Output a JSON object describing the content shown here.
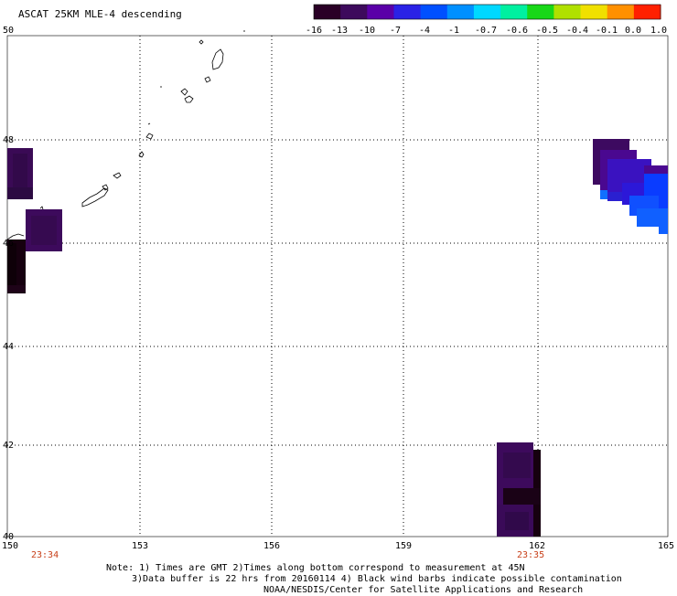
{
  "title": "ASCAT 25KM MLE-4 descending",
  "colorbar": {
    "labels": [
      "-16",
      "-13",
      "-10",
      "-7",
      "-4",
      "-1",
      "-0.7",
      "-0.6",
      "-0.5",
      "-0.4",
      "-0.1",
      "0.0",
      "1.0"
    ],
    "colors": [
      "#2a0026",
      "#3d0a5c",
      "#5a00a8",
      "#2a22e6",
      "#0050ff",
      "#0090ff",
      "#00d8ff",
      "#00f0a0",
      "#18d818",
      "#b0e000",
      "#f0e000",
      "#ff9000",
      "#ff2000"
    ]
  },
  "lat_labels": [
    "50",
    "48",
    "46",
    "44",
    "42",
    "40"
  ],
  "lon_labels": [
    "150",
    "153",
    "156",
    "159",
    "162",
    "165"
  ],
  "time_labels": [
    "23:34",
    "23:35"
  ],
  "notes": {
    "line1": "Note: 1) Times are GMT 2)Times along bottom correspond to measurement at 45N",
    "line2": "3)Data buffer is 22 hrs from 20160114 4) Black wind barbs indicate possible contamination",
    "line3": "NOAA/NESDIS/Center for Satellite Applications and Research"
  },
  "legend_colors": {
    "very_dark": "#16000f",
    "dark": "#2c0a35",
    "purple": "#3d0a5c",
    "violet": "#4a0890",
    "blue_violet": "#2c18d8",
    "blue": "#0a3cff",
    "light_blue": "#1060ff"
  }
}
